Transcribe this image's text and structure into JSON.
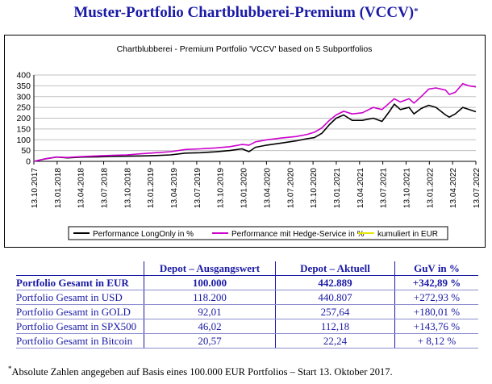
{
  "page": {
    "title": "Muster-Portfolio Chartblubberei-Premium (VCCV)",
    "title_mark": "*"
  },
  "chart_data": {
    "type": "line",
    "title": "Chartblubberei - Premium Portfolio 'VCCV' based on 5 Subportfolios",
    "xlabel": "",
    "ylabel": "",
    "ylim": [
      0,
      400
    ],
    "yticks": [
      "0",
      "50",
      "100",
      "150",
      "200",
      "250",
      "300",
      "350",
      "400"
    ],
    "xticks": [
      "13.10.2017",
      "13.01.2018",
      "13.04.2018",
      "13.07.2018",
      "13.10.2018",
      "13.01.2019",
      "13.04.2019",
      "13.07.2019",
      "13.10.2019",
      "13.01.2020",
      "13.04.2020",
      "13.07.2020",
      "13.10.2020",
      "13.01.2021",
      "13.04.2021",
      "13.07.2021",
      "13.10.2021",
      "13.01.2022",
      "13.04.2022",
      "13.07.2022"
    ],
    "x_range": [
      "2017-10-13",
      "2022-10-13"
    ],
    "grid": "horizontal",
    "legend_position": "bottom",
    "series": [
      {
        "name": "Performance LongOnly in %",
        "color": "#000000",
        "points": [
          [
            "2017-10-13",
            0
          ],
          [
            "2017-12-01",
            12
          ],
          [
            "2018-01-15",
            20
          ],
          [
            "2018-03-01",
            16
          ],
          [
            "2018-05-01",
            20
          ],
          [
            "2018-07-01",
            21
          ],
          [
            "2018-09-01",
            23
          ],
          [
            "2018-11-01",
            24
          ],
          [
            "2019-01-01",
            25
          ],
          [
            "2019-03-01",
            27
          ],
          [
            "2019-05-01",
            30
          ],
          [
            "2019-07-01",
            38
          ],
          [
            "2019-09-01",
            40
          ],
          [
            "2019-11-01",
            44
          ],
          [
            "2020-01-01",
            50
          ],
          [
            "2020-02-20",
            58
          ],
          [
            "2020-03-20",
            45
          ],
          [
            "2020-04-15",
            65
          ],
          [
            "2020-06-01",
            75
          ],
          [
            "2020-08-01",
            85
          ],
          [
            "2020-10-01",
            95
          ],
          [
            "2020-11-15",
            105
          ],
          [
            "2020-12-15",
            110
          ],
          [
            "2021-01-15",
            130
          ],
          [
            "2021-02-15",
            170
          ],
          [
            "2021-03-15",
            200
          ],
          [
            "2021-04-15",
            215
          ],
          [
            "2021-05-20",
            190
          ],
          [
            "2021-07-01",
            190
          ],
          [
            "2021-08-15",
            200
          ],
          [
            "2021-09-20",
            185
          ],
          [
            "2021-10-20",
            230
          ],
          [
            "2021-11-10",
            265
          ],
          [
            "2021-12-05",
            240
          ],
          [
            "2022-01-10",
            250
          ],
          [
            "2022-01-30",
            220
          ],
          [
            "2022-03-01",
            245
          ],
          [
            "2022-04-01",
            260
          ],
          [
            "2022-05-01",
            250
          ],
          [
            "2022-06-10",
            215
          ],
          [
            "2022-06-25",
            205
          ],
          [
            "2022-07-20",
            220
          ],
          [
            "2022-08-20",
            250
          ],
          [
            "2022-09-15",
            240
          ],
          [
            "2022-10-13",
            230
          ]
        ]
      },
      {
        "name": "Performance mit Hedge-Service in %",
        "color": "#cc00cc",
        "points": [
          [
            "2017-10-13",
            0
          ],
          [
            "2017-12-01",
            12
          ],
          [
            "2018-01-15",
            20
          ],
          [
            "2018-03-01",
            18
          ],
          [
            "2018-05-01",
            22
          ],
          [
            "2018-07-01",
            25
          ],
          [
            "2018-09-01",
            28
          ],
          [
            "2018-11-01",
            30
          ],
          [
            "2019-01-01",
            35
          ],
          [
            "2019-03-01",
            40
          ],
          [
            "2019-05-01",
            45
          ],
          [
            "2019-07-01",
            55
          ],
          [
            "2019-09-01",
            58
          ],
          [
            "2019-11-01",
            62
          ],
          [
            "2020-01-01",
            68
          ],
          [
            "2020-02-20",
            78
          ],
          [
            "2020-03-20",
            75
          ],
          [
            "2020-04-15",
            90
          ],
          [
            "2020-06-01",
            100
          ],
          [
            "2020-08-01",
            108
          ],
          [
            "2020-10-01",
            115
          ],
          [
            "2020-11-15",
            125
          ],
          [
            "2020-12-15",
            135
          ],
          [
            "2021-01-15",
            155
          ],
          [
            "2021-02-15",
            190
          ],
          [
            "2021-03-15",
            215
          ],
          [
            "2021-04-15",
            232
          ],
          [
            "2021-05-20",
            220
          ],
          [
            "2021-07-01",
            225
          ],
          [
            "2021-08-15",
            250
          ],
          [
            "2021-09-20",
            240
          ],
          [
            "2021-10-20",
            270
          ],
          [
            "2021-11-10",
            290
          ],
          [
            "2021-12-05",
            275
          ],
          [
            "2022-01-10",
            290
          ],
          [
            "2022-01-30",
            270
          ],
          [
            "2022-03-01",
            300
          ],
          [
            "2022-04-01",
            335
          ],
          [
            "2022-05-01",
            340
          ],
          [
            "2022-06-10",
            330
          ],
          [
            "2022-06-25",
            310
          ],
          [
            "2022-07-20",
            320
          ],
          [
            "2022-08-20",
            360
          ],
          [
            "2022-09-15",
            350
          ],
          [
            "2022-10-13",
            345
          ]
        ]
      },
      {
        "name": "kumuliert in EUR",
        "color": "#e6e600",
        "points": []
      }
    ]
  },
  "summary": {
    "headers": [
      "",
      "Depot – Ausgangswert",
      "Depot – Aktuell",
      "GuV in %"
    ],
    "rows": [
      {
        "label": "Portfolio Gesamt in EUR",
        "start": "100.000",
        "current": "442.889",
        "pct": "+342,89 %",
        "bold": true
      },
      {
        "label": "Portfolio Gesamt in USD",
        "start": "118.200",
        "current": "440.807",
        "pct": "+272,93 %",
        "bold": false
      },
      {
        "label": "Portfolio Gesamt in GOLD",
        "start": "92,01",
        "current": "257,64",
        "pct": "+180,01 %",
        "bold": false
      },
      {
        "label": "Portfolio Gesamt in SPX500",
        "start": "46,02",
        "current": "112,18",
        "pct": "+143,76 %",
        "bold": false
      },
      {
        "label": "Portfolio Gesamt in Bitcoin",
        "start": "20,57",
        "current": "22,24",
        "pct": "+ 8,12 %",
        "bold": false
      }
    ]
  },
  "footnote": {
    "mark": "*",
    "text": "Absolute Zahlen angegeben auf Basis eines 100.000 EUR Portfolios – Start 13. Oktober 2017."
  }
}
